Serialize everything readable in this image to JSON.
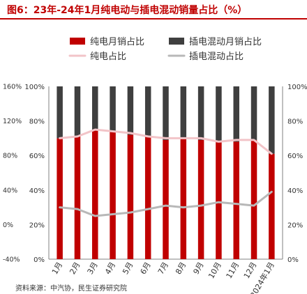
{
  "title": "图6：23年-24年1月纯电动与插电混动销量占比（%）",
  "source": "资料来源：中汽协，民生证券研究院",
  "colors": {
    "title": "#c00000",
    "bev": "#c00000",
    "phev": "#3f3f3f",
    "bev_share": "#f2c4c8",
    "phev_share": "#b8b8b8",
    "axis_text": "#333333"
  },
  "chart_data": {
    "type": "bar",
    "stacked": true,
    "categories": [
      "1月",
      "2月",
      "3月",
      "4月",
      "5月",
      "6月",
      "7月",
      "8月",
      "9月",
      "10月",
      "11月",
      "12月",
      "2024年1月"
    ],
    "series": [
      {
        "name": "纯电月销占比",
        "type": "bar",
        "axis": "right",
        "values": [
          70,
          71,
          75,
          74,
          72,
          71,
          69,
          70,
          69,
          68,
          68,
          69,
          61
        ]
      },
      {
        "name": "插电混动月销占比",
        "type": "bar",
        "axis": "right",
        "values": [
          30,
          29,
          25,
          26,
          28,
          29,
          31,
          30,
          31,
          32,
          32,
          31,
          39
        ]
      },
      {
        "name": "纯电占比",
        "type": "line",
        "axis": "right",
        "values": [
          70,
          71,
          75,
          74,
          73,
          71,
          70,
          70,
          70,
          68,
          69,
          69,
          61
        ]
      },
      {
        "name": "插电混动占比",
        "type": "line",
        "axis": "right",
        "values": [
          30,
          29,
          25,
          26,
          27,
          29,
          31,
          30,
          31,
          33,
          32,
          31,
          39
        ]
      }
    ],
    "y_left_ticks": [
      "160%",
      "120%",
      "80%",
      "40%",
      "0%",
      "-40%"
    ],
    "y_inner_ticks": [
      "100%",
      "80%",
      "60%",
      "40%",
      "20%",
      "0%"
    ],
    "y_right_ticks": [
      "100%",
      "80%",
      "60%",
      "40%",
      "20%",
      "0%"
    ],
    "ylim": [
      0,
      100
    ],
    "legend_position": "top",
    "grid": false
  }
}
